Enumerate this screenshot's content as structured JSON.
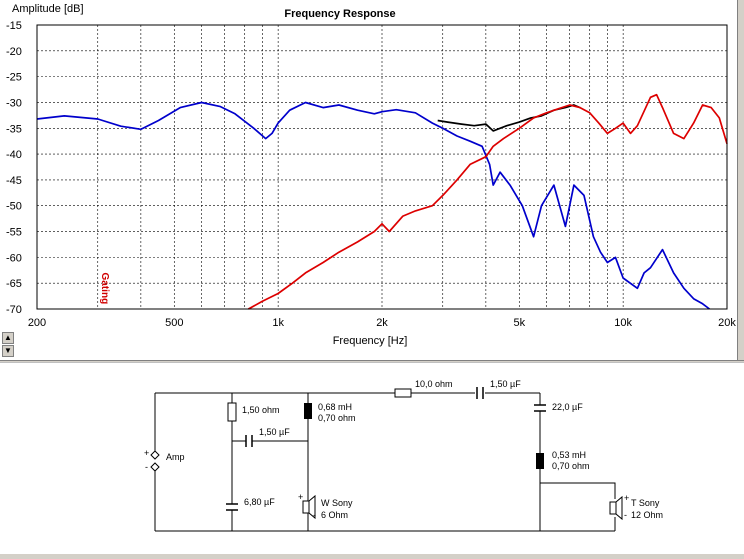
{
  "chart_data": {
    "type": "line",
    "title": "Frequency Response",
    "xlabel": "Frequency [Hz]",
    "ylabel": "Amplitude [dB]",
    "xscale": "log",
    "xlim": [
      200,
      20000
    ],
    "ylim": [
      -70,
      -15
    ],
    "grid": true,
    "x_ticks": [
      {
        "value": 200,
        "label": "200"
      },
      {
        "value": 500,
        "label": "500"
      },
      {
        "value": 1000,
        "label": "1k"
      },
      {
        "value": 2000,
        "label": "2k"
      },
      {
        "value": 5000,
        "label": "5k"
      },
      {
        "value": 10000,
        "label": "10k"
      },
      {
        "value": 20000,
        "label": "20k"
      }
    ],
    "y_ticks": [
      {
        "value": -15,
        "label": "-15"
      },
      {
        "value": -20,
        "label": "-20"
      },
      {
        "value": -25,
        "label": "-25"
      },
      {
        "value": -30,
        "label": "-30"
      },
      {
        "value": -35,
        "label": "-35"
      },
      {
        "value": -40,
        "label": "-40"
      },
      {
        "value": -45,
        "label": "-45"
      },
      {
        "value": -50,
        "label": "-50"
      },
      {
        "value": -55,
        "label": "-55"
      },
      {
        "value": -60,
        "label": "-60"
      },
      {
        "value": -65,
        "label": "-65"
      },
      {
        "value": -70,
        "label": "-70"
      }
    ],
    "annotation": {
      "text": "Gating",
      "x": 300,
      "y": -66,
      "color": "#d00000"
    },
    "series": [
      {
        "color": "#000000",
        "x": [
          2900,
          3100,
          3400,
          3700,
          4000,
          4200,
          4600,
          5000,
          5400,
          5800,
          6300,
          6800,
          7200,
          7500
        ],
        "y": [
          -33.5,
          -33.8,
          -34.2,
          -34.5,
          -34.2,
          -35.5,
          -34.5,
          -33.8,
          -33,
          -32.6,
          -31.5,
          -31,
          -30.5,
          -31
        ]
      },
      {
        "color": "#0000cc",
        "x": [
          200,
          240,
          300,
          350,
          400,
          450,
          520,
          600,
          680,
          750,
          850,
          920,
          960,
          1000,
          1080,
          1200,
          1350,
          1500,
          1700,
          1900,
          2000,
          2200,
          2500,
          2800,
          3000,
          3300,
          3600,
          3900,
          4100,
          4200,
          4400,
          4700,
          5100,
          5500,
          5800,
          6300,
          6800,
          7200,
          7700,
          8200,
          8600,
          9000,
          9500,
          10000,
          11000,
          11500,
          12000,
          13000,
          14000,
          15000,
          16000,
          17000,
          17800
        ],
        "y": [
          -33.2,
          -32.6,
          -33.2,
          -34.6,
          -35.2,
          -33.5,
          -31,
          -30,
          -30.8,
          -32.2,
          -35,
          -37,
          -36,
          -34,
          -31.5,
          -30,
          -31,
          -30.5,
          -31.5,
          -32.2,
          -31.8,
          -31.4,
          -32,
          -34,
          -35,
          -36.5,
          -37.5,
          -38.5,
          -42,
          -46,
          -43.5,
          -46,
          -50,
          -56,
          -50,
          -46,
          -54,
          -46,
          -48,
          -56,
          -59,
          -61,
          -60,
          -64,
          -66,
          -63,
          -62,
          -58.5,
          -63,
          -66,
          -68,
          -69,
          -70
        ]
      },
      {
        "color": "#dd0000",
        "x": [
          820,
          900,
          1000,
          1100,
          1200,
          1350,
          1500,
          1700,
          1900,
          2000,
          2100,
          2300,
          2500,
          2800,
          3000,
          3300,
          3600,
          4000,
          4200,
          4500,
          5000,
          5500,
          6000,
          6500,
          7000,
          7500,
          8000,
          8500,
          9000,
          9500,
          10000,
          10500,
          11000,
          12000,
          12500,
          13000,
          14000,
          15000,
          16000,
          17000,
          18000,
          19000,
          20000
        ],
        "y": [
          -70,
          -68.5,
          -67,
          -65,
          -63,
          -61,
          -59,
          -57,
          -55,
          -53.5,
          -55,
          -52,
          -51,
          -50,
          -48,
          -45,
          -42,
          -40.5,
          -38.5,
          -37,
          -35,
          -33,
          -32,
          -31.2,
          -30.5,
          -31,
          -32,
          -34,
          -36,
          -35,
          -34,
          -36,
          -34.5,
          -29,
          -28.5,
          -31,
          -36,
          -37,
          -34,
          -30.5,
          -31,
          -33,
          -38
        ]
      }
    ]
  },
  "schematic": {
    "components": {
      "r1": "1,50 ohm",
      "c1": "1,50 µF",
      "l1_a": "0,68 mH",
      "l1_b": "0,70 ohm",
      "c2": "6,80 µF",
      "r2": "10,0 ohm",
      "c3": "1,50 µF",
      "c4": "22,0 µF",
      "l2_a": "0,53 mH",
      "l2_b": "0,70 ohm"
    },
    "amp": "Amp",
    "woofer_a": "W Sony",
    "woofer_b": "6 Ohm",
    "tweeter_a": "T Sony",
    "tweeter_b": "12 Ohm",
    "plus": "+",
    "minus": "-"
  }
}
